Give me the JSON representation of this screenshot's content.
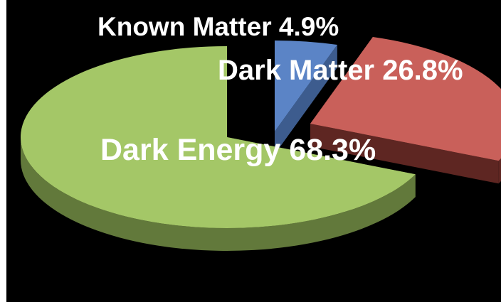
{
  "chart_data": {
    "type": "pie",
    "style": "3d-exploded",
    "title": "",
    "slices": [
      {
        "name": "Known Matter",
        "value": 4.9,
        "label": "Known Matter 4.9%",
        "color": "#5b84c6",
        "side_color": "#3d5c8e"
      },
      {
        "name": "Dark Matter",
        "value": 26.8,
        "label": "Dark Matter 26.8%",
        "color": "#c9605a",
        "side_color": "#5e2622"
      },
      {
        "name": "Dark Energy",
        "value": 68.3,
        "label": "Dark Energy 68.3%",
        "color": "#a4c767",
        "side_color": "#62793b"
      }
    ],
    "background_color": "#000000",
    "label_color": "#ffffff",
    "legend": "none"
  }
}
